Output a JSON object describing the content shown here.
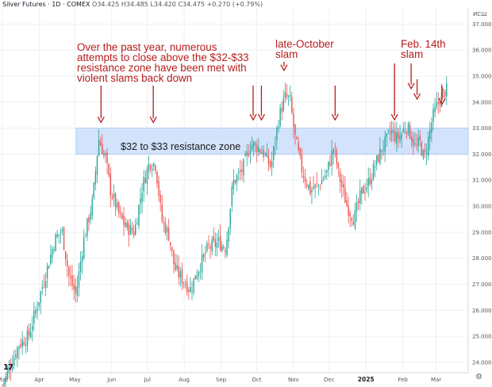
{
  "header": {
    "title": "Silver Futures · 1D · COMEX",
    "open": "O34.425",
    "high": "H34.485",
    "low": "L34.420",
    "close": "C34.475",
    "change": "+0.270 (+0.79%)"
  },
  "currency": "ИСШ",
  "logo_text": "17",
  "annotations": [
    {
      "id": "over-year",
      "lines": [
        "Over the past year, numerous",
        "attempts to close above the $32-$33",
        "resistance zone have been met with",
        "violent slams back down"
      ]
    },
    {
      "id": "late-october",
      "lines": [
        "late-October",
        "slam"
      ]
    },
    {
      "id": "feb-14",
      "lines": [
        "Feb. 14th",
        "slam"
      ]
    }
  ],
  "chart_data": {
    "type": "candlestick",
    "title": "Silver Futures · 1D · COMEX",
    "ylim": [
      23.6,
      37.5
    ],
    "yticks": [
      "37.000",
      "36.000",
      "35.000",
      "34.000",
      "33.000",
      "32.000",
      "31.000",
      "30.000",
      "29.000",
      "28.000",
      "27.000",
      "26.000",
      "25.000",
      "24.000"
    ],
    "ytick_values": [
      37,
      36,
      35,
      34,
      33,
      32,
      31,
      30,
      29,
      28,
      27,
      26,
      25,
      24
    ],
    "xticks": [
      {
        "label": "Mar",
        "day": 0
      },
      {
        "label": "Apr",
        "day": 31
      },
      {
        "label": "May",
        "day": 61
      },
      {
        "label": "Jun",
        "day": 92
      },
      {
        "label": "Jul",
        "day": 122
      },
      {
        "label": "Aug",
        "day": 153
      },
      {
        "label": "Sep",
        "day": 184
      },
      {
        "label": "Oct",
        "day": 214
      },
      {
        "label": "Nov",
        "day": 245
      },
      {
        "label": "Dec",
        "day": 275
      },
      {
        "label": "2025",
        "day": 306,
        "bold": true
      },
      {
        "label": "Feb",
        "day": 337
      },
      {
        "label": "Mar",
        "day": 365
      }
    ],
    "day_range": [
      -2,
      392
    ],
    "resistance_zone": {
      "low": 32.0,
      "high": 33.0,
      "label": "$32 to $33 resistance zone"
    },
    "price_path": [
      [
        0,
        23.1
      ],
      [
        14,
        24.7
      ],
      [
        22,
        25.0
      ],
      [
        30,
        26.3
      ],
      [
        37,
        27.5
      ],
      [
        44,
        28.7
      ],
      [
        50,
        29.1
      ],
      [
        56,
        27.3
      ],
      [
        62,
        26.6
      ],
      [
        68,
        28.6
      ],
      [
        76,
        30.2
      ],
      [
        81,
        32.6
      ],
      [
        87,
        31.8
      ],
      [
        91,
        30.6
      ],
      [
        98,
        29.7
      ],
      [
        104,
        29.2
      ],
      [
        111,
        29.0
      ],
      [
        118,
        30.8
      ],
      [
        124,
        31.7
      ],
      [
        129,
        31.6
      ],
      [
        134,
        29.5
      ],
      [
        140,
        28.9
      ],
      [
        145,
        27.6
      ],
      [
        153,
        27.1
      ],
      [
        158,
        26.8
      ],
      [
        165,
        27.6
      ],
      [
        173,
        28.4
      ],
      [
        182,
        28.6
      ],
      [
        188,
        28.4
      ],
      [
        194,
        30.9
      ],
      [
        202,
        31.4
      ],
      [
        209,
        32.4
      ],
      [
        214,
        32.3
      ],
      [
        219,
        32.1
      ],
      [
        226,
        31.5
      ],
      [
        233,
        33.5
      ],
      [
        238,
        34.2
      ],
      [
        242,
        34.1
      ],
      [
        246,
        32.7
      ],
      [
        252,
        31.4
      ],
      [
        259,
        30.6
      ],
      [
        266,
        30.8
      ],
      [
        273,
        31.3
      ],
      [
        279,
        32.3
      ],
      [
        283,
        31.2
      ],
      [
        290,
        30.0
      ],
      [
        296,
        29.5
      ],
      [
        302,
        30.5
      ],
      [
        308,
        30.9
      ],
      [
        314,
        31.6
      ],
      [
        319,
        32.2
      ],
      [
        323,
        32.5
      ],
      [
        327,
        32.9
      ],
      [
        332,
        32.6
      ],
      [
        336,
        32.8
      ],
      [
        340,
        33.1
      ],
      [
        344,
        32.7
      ],
      [
        348,
        32.2
      ],
      [
        351,
        32.5
      ],
      [
        355,
        31.8
      ],
      [
        359,
        32.7
      ],
      [
        362,
        33.4
      ],
      [
        366,
        33.9
      ],
      [
        370,
        34.3
      ],
      [
        375,
        34.5
      ]
    ],
    "arrows": [
      {
        "day": 83,
        "to_price": 33.1
      },
      {
        "day": 127,
        "to_price": 33.1
      },
      {
        "day": 211,
        "to_price": 33.2
      },
      {
        "day": 218,
        "to_price": 33.2
      },
      {
        "day": 237,
        "to_price": 35.1
      },
      {
        "day": 280,
        "to_price": 33.2
      },
      {
        "day": 330,
        "to_price": 33.2
      },
      {
        "day": 344,
        "to_price": 34.4
      },
      {
        "day": 349,
        "to_price": 34.0
      },
      {
        "day": 370,
        "to_price": 33.8
      }
    ],
    "colors": {
      "up": "#26a69a",
      "down": "#ef5350",
      "zone": "#cfe0fb",
      "zone_border": "#9ec0f3",
      "annotation": "#b71c1c",
      "grid": "#eef0f3"
    },
    "grid": true
  }
}
